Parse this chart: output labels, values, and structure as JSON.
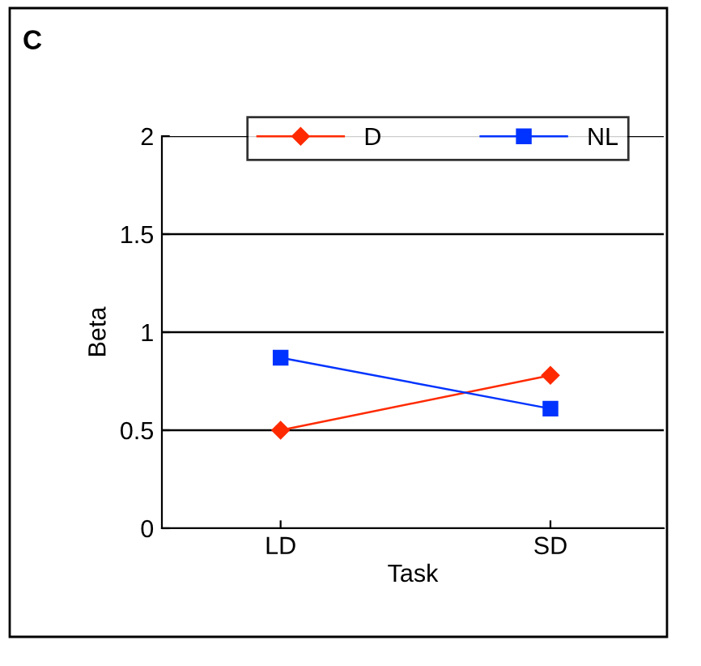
{
  "chart_data": {
    "type": "line",
    "title": "C",
    "xlabel": "Task",
    "ylabel": "Beta",
    "categories": [
      "LD",
      "SD"
    ],
    "series": [
      {
        "name": "D",
        "color": "#ff2a00",
        "marker": "diamond",
        "values": [
          0.5,
          0.78
        ]
      },
      {
        "name": "NL",
        "color": "#0033ff",
        "marker": "square",
        "values": [
          0.87,
          0.61
        ]
      }
    ],
    "ylim": [
      0,
      2
    ],
    "yticks": [
      0,
      0.5,
      1,
      1.5,
      2
    ],
    "grid": "y",
    "legend": "top",
    "line_style": "solid"
  }
}
